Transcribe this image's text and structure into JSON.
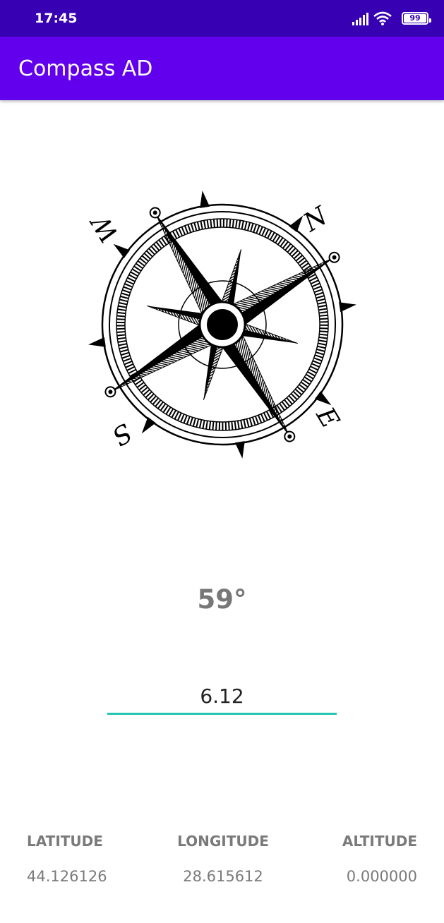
{
  "status_bar": {
    "time": "17:45",
    "battery_level": "99",
    "icons": [
      "signal-icon",
      "wifi-icon",
      "battery-icon"
    ]
  },
  "app_bar": {
    "title": "Compass AD",
    "color": "#6200ee"
  },
  "compass": {
    "labels": {
      "north": "N",
      "east": "E",
      "south": "S",
      "west": "W"
    }
  },
  "heading": {
    "value": "59°"
  },
  "declination": {
    "value": "6.12",
    "underline_color": "#26c6b4"
  },
  "location": {
    "latitude_label": "LATITUDE",
    "latitude_value": "44.126126",
    "longitude_label": "LONGITUDE",
    "longitude_value": "28.615612",
    "altitude_label": "ALTITUDE",
    "altitude_value": "0.000000"
  }
}
